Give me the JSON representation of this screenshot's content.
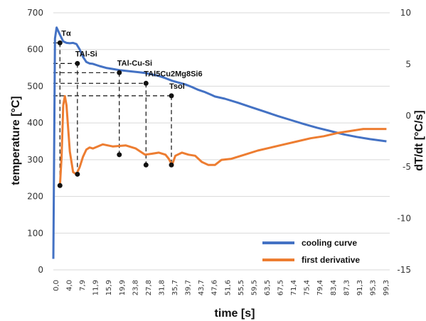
{
  "chart_data": {
    "type": "line",
    "xlabel": "time [s]",
    "ylabel_left": "temperature [°C]",
    "ylabel_right": "dT/dt [°C/s]",
    "x_ticks": [
      "0,0",
      "4,0",
      "7,9",
      "11,9",
      "15,9",
      "19,9",
      "23,8",
      "27,8",
      "31,8",
      "35,7",
      "39,7",
      "43,7",
      "47,6",
      "51,6",
      "55,5",
      "59,5",
      "63,5",
      "67,5",
      "71,4",
      "75,4",
      "79,4",
      "83,4",
      "87,3",
      "91,3",
      "95,3",
      "99,3"
    ],
    "xlim": [
      0,
      102
    ],
    "ylim_left": [
      0,
      700
    ],
    "ylim_right": [
      -15,
      10
    ],
    "y_ticks_left": [
      "0",
      "100",
      "200",
      "300",
      "400",
      "500",
      "600",
      "700"
    ],
    "y_ticks_right": [
      "-15",
      "-10",
      "-5",
      "0",
      "5",
      "10"
    ],
    "grid": "horizontal",
    "legend": {
      "position": "bottom-right"
    },
    "series": [
      {
        "name": "cooling curve",
        "axis": "left",
        "color": "#4472c4",
        "points": [
          [
            0,
            30
          ],
          [
            0.5,
            630
          ],
          [
            1,
            660
          ],
          [
            2,
            640
          ],
          [
            3,
            622
          ],
          [
            4,
            618
          ],
          [
            5,
            617
          ],
          [
            6,
            618
          ],
          [
            7,
            615
          ],
          [
            8,
            600
          ],
          [
            9,
            580
          ],
          [
            10,
            566
          ],
          [
            11,
            562
          ],
          [
            12,
            561
          ],
          [
            14,
            555
          ],
          [
            16,
            550
          ],
          [
            18,
            547
          ],
          [
            20,
            544
          ],
          [
            22,
            542
          ],
          [
            24,
            540
          ],
          [
            26,
            538
          ],
          [
            27.8,
            536
          ],
          [
            30,
            532
          ],
          [
            32,
            528
          ],
          [
            34,
            522
          ],
          [
            36,
            515
          ],
          [
            38,
            510
          ],
          [
            40,
            505
          ],
          [
            42,
            498
          ],
          [
            44,
            490
          ],
          [
            46,
            484
          ],
          [
            48,
            476
          ],
          [
            49,
            472
          ],
          [
            52,
            466
          ],
          [
            56,
            455
          ],
          [
            60,
            443
          ],
          [
            64,
            431
          ],
          [
            68,
            419
          ],
          [
            72,
            408
          ],
          [
            76,
            397
          ],
          [
            80,
            387
          ],
          [
            84,
            378
          ],
          [
            88,
            369
          ],
          [
            92,
            362
          ],
          [
            96,
            356
          ],
          [
            101,
            350
          ]
        ]
      },
      {
        "name": "first derivative",
        "axis": "right",
        "color": "#ed7d31",
        "points": [
          [
            2,
            -6.8
          ],
          [
            2.5,
            -4
          ],
          [
            3,
            1
          ],
          [
            3.5,
            1.9
          ],
          [
            4,
            1
          ],
          [
            5,
            -3.5
          ],
          [
            6,
            -5.5
          ],
          [
            7,
            -5.7
          ],
          [
            8,
            -5
          ],
          [
            9,
            -4
          ],
          [
            10,
            -3.3
          ],
          [
            11,
            -3.1
          ],
          [
            12,
            -3.2
          ],
          [
            15,
            -2.8
          ],
          [
            18,
            -3
          ],
          [
            22,
            -2.9
          ],
          [
            25,
            -3.2
          ],
          [
            27.8,
            -3.8
          ],
          [
            30,
            -3.7
          ],
          [
            32,
            -3.6
          ],
          [
            34,
            -3.8
          ],
          [
            35,
            -4.2
          ],
          [
            36,
            -4.8
          ],
          [
            37,
            -3.9
          ],
          [
            39,
            -3.6
          ],
          [
            41,
            -3.8
          ],
          [
            43,
            -3.9
          ],
          [
            45,
            -4.5
          ],
          [
            47,
            -4.8
          ],
          [
            49,
            -4.8
          ],
          [
            51,
            -4.3
          ],
          [
            54,
            -4.2
          ],
          [
            58,
            -3.8
          ],
          [
            62,
            -3.4
          ],
          [
            66,
            -3.1
          ],
          [
            70,
            -2.8
          ],
          [
            74,
            -2.5
          ],
          [
            78,
            -2.2
          ],
          [
            82,
            -2
          ],
          [
            86,
            -1.7
          ],
          [
            90,
            -1.5
          ],
          [
            94,
            -1.3
          ],
          [
            98,
            -1.3
          ],
          [
            101,
            -1.3
          ]
        ]
      }
    ],
    "annotations": [
      {
        "label": "Tα",
        "x": 2.0,
        "temp": 618,
        "deriv": -6.8
      },
      {
        "label": "TAl-Si",
        "x": 7.3,
        "temp": 562,
        "deriv": -5.7
      },
      {
        "label": "TAl-Cu-Si",
        "x": 20.0,
        "temp": 537,
        "deriv": -3.8
      },
      {
        "label": "TAl5Cu2Mg8Si6",
        "x": 28.1,
        "temp": 508,
        "deriv": -4.8
      },
      {
        "label": "Tsol",
        "x": 35.8,
        "temp": 474,
        "deriv": -4.8
      }
    ]
  }
}
